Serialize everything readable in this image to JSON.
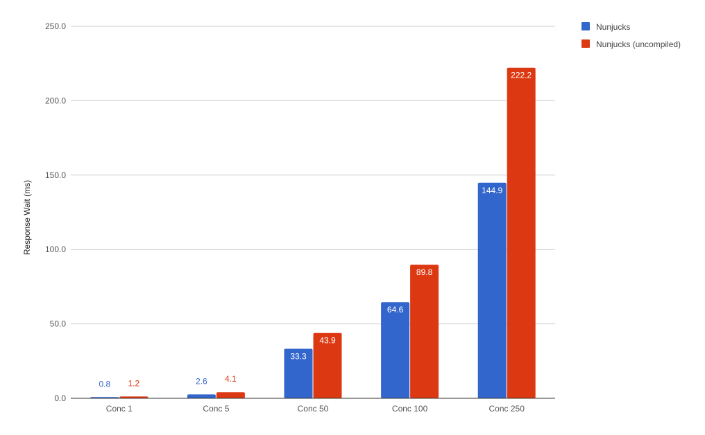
{
  "chart_data": {
    "type": "bar",
    "title": "",
    "xlabel": "",
    "ylabel": "Response Wait (ms)",
    "ylim": [
      0,
      250
    ],
    "yticks": [
      0,
      50,
      100,
      150,
      200,
      250
    ],
    "ytick_labels": [
      "0.0",
      "50.0",
      "100.0",
      "150.0",
      "200.0",
      "250.0"
    ],
    "grid": true,
    "legend_position": "top-right",
    "categories": [
      "Conc 1",
      "Conc 5",
      "Conc 50",
      "Conc 100",
      "Conc 250"
    ],
    "series": [
      {
        "name": "Nunjucks",
        "color": "#3366cc",
        "values": [
          0.8,
          2.6,
          33.3,
          64.6,
          144.9
        ],
        "labels": [
          "0.8",
          "2.6",
          "33.3",
          "64.6",
          "144.9"
        ]
      },
      {
        "name": "Nunjucks (uncompiled)",
        "color": "#dc3912",
        "values": [
          1.2,
          4.1,
          43.9,
          89.8,
          222.2
        ],
        "labels": [
          "1.2",
          "4.1",
          "43.9",
          "89.8",
          "222.2"
        ]
      }
    ]
  }
}
